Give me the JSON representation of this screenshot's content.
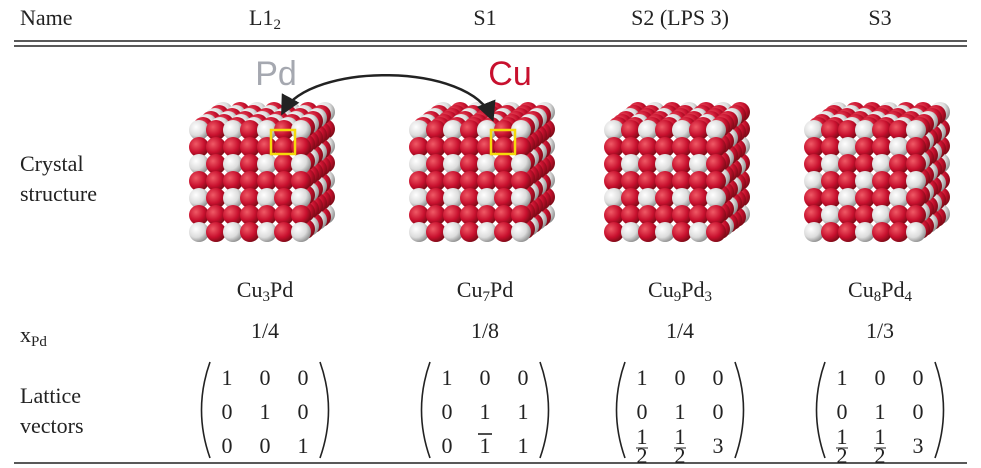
{
  "header": {
    "columns": [
      {
        "text": "Name"
      },
      {
        "text": "L1",
        "sub": "2"
      },
      {
        "text": "S1"
      },
      {
        "text": "S2 (LPS 3)"
      },
      {
        "text": "S3"
      }
    ]
  },
  "annotations": {
    "pd": "Pd",
    "cu": "Cu"
  },
  "rows": {
    "crystal_structure": [
      "Crystal",
      "structure"
    ],
    "formulas": [
      [
        {
          "el": "Cu",
          "n": "3"
        },
        {
          "el": "Pd"
        }
      ],
      [
        {
          "el": "Cu",
          "n": "7"
        },
        {
          "el": "Pd"
        }
      ],
      [
        {
          "el": "Cu",
          "n": "9"
        },
        {
          "el": "Pd",
          "n": "3"
        }
      ],
      [
        {
          "el": "Cu",
          "n": "8"
        },
        {
          "el": "Pd",
          "n": "4"
        }
      ]
    ],
    "x_pd": {
      "text": "x",
      "sub": "Pd"
    },
    "x_pd_values": [
      "1/4",
      "1/8",
      "1/4",
      "1/3"
    ],
    "lattice_vectors": [
      "Lattice",
      "vectors"
    ],
    "matrices": [
      [
        [
          "1",
          "0",
          "0"
        ],
        [
          "0",
          "1",
          "0"
        ],
        [
          "0",
          "0",
          "1"
        ]
      ],
      [
        [
          "1",
          "0",
          "0"
        ],
        [
          "0",
          "1",
          "1"
        ],
        [
          "0",
          {
            "text": "1",
            "bar": true
          },
          "1"
        ]
      ],
      [
        [
          "1",
          "0",
          "0"
        ],
        [
          "0",
          "1",
          "0"
        ],
        [
          {
            "num": "1",
            "den": "2"
          },
          {
            "num": "1",
            "den": "2"
          },
          "3"
        ]
      ],
      [
        [
          "1",
          "0",
          "0"
        ],
        [
          "0",
          "1",
          "0"
        ],
        [
          {
            "num": "1",
            "den": "2"
          },
          {
            "num": "1",
            "den": "2"
          },
          "3"
        ]
      ]
    ]
  }
}
